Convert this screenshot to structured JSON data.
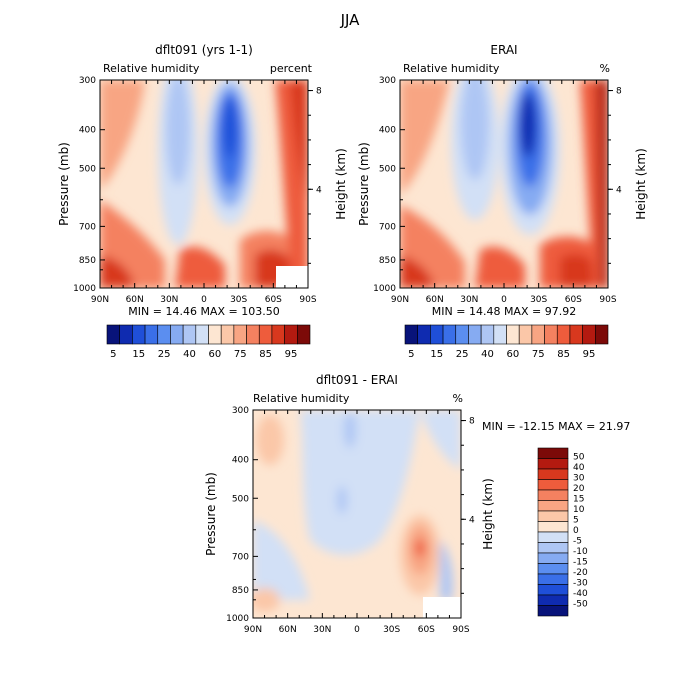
{
  "page_title": "JJA",
  "chart_data": [
    {
      "type": "heatmap",
      "title": "dflt091 (yrs 1-1)",
      "subtitle_left": "Relative humidity",
      "subtitle_right": "percent",
      "ylabel": "Pressure (mb)",
      "ylabel_right": "Height (km)",
      "x_ticks": [
        "90N",
        "60N",
        "30N",
        "0",
        "30S",
        "60S",
        "90S"
      ],
      "y_ticks": [
        "300",
        "400",
        "500",
        "700",
        "850",
        "1000"
      ],
      "y_ticks_right": [
        "8",
        "4"
      ],
      "stats": "MIN =  14.46   MAX = 103.50",
      "levels": [
        5,
        10,
        15,
        20,
        25,
        30,
        40,
        50,
        60,
        65,
        70,
        75,
        80,
        85,
        90,
        95
      ],
      "colorbar_labels": [
        "5",
        "15",
        "25",
        "40",
        "60",
        "75",
        "85",
        "95"
      ],
      "colorbar_orientation": "horizontal"
    },
    {
      "type": "heatmap",
      "title": "ERAI",
      "subtitle_left": "Relative humidity",
      "subtitle_right": "%",
      "ylabel": "Pressure (mb)",
      "ylabel_right": "Height (km)",
      "x_ticks": [
        "90N",
        "60N",
        "30N",
        "0",
        "30S",
        "60S",
        "90S"
      ],
      "y_ticks": [
        "300",
        "400",
        "500",
        "700",
        "850",
        "1000"
      ],
      "y_ticks_right": [
        "8",
        "4"
      ],
      "stats": "MIN =  14.48   MAX =  97.92",
      "levels": [
        5,
        10,
        15,
        20,
        25,
        30,
        40,
        50,
        60,
        65,
        70,
        75,
        80,
        85,
        90,
        95
      ],
      "colorbar_labels": [
        "5",
        "15",
        "25",
        "40",
        "60",
        "75",
        "85",
        "95"
      ],
      "colorbar_orientation": "horizontal"
    },
    {
      "type": "heatmap",
      "title": "dflt091 - ERAI",
      "subtitle_left": "Relative humidity",
      "subtitle_right": "%",
      "ylabel": "Pressure (mb)",
      "ylabel_right": "Height (km)",
      "x_ticks": [
        "90N",
        "60N",
        "30N",
        "0",
        "30S",
        "60S",
        "90S"
      ],
      "y_ticks": [
        "300",
        "400",
        "500",
        "700",
        "850",
        "1000"
      ],
      "y_ticks_right": [
        "8",
        "4"
      ],
      "stats": "MIN = -12.15   MAX =  21.97",
      "levels": [
        -50,
        -40,
        -30,
        -20,
        -15,
        -10,
        -5,
        0,
        5,
        10,
        15,
        20,
        30,
        40,
        50
      ],
      "colorbar_labels": [
        "50",
        "40",
        "30",
        "20",
        "15",
        "10",
        "5",
        "0",
        "-5",
        "-10",
        "-15",
        "-20",
        "-30",
        "-40",
        "-50"
      ],
      "colorbar_orientation": "vertical"
    }
  ],
  "colors": {
    "abs_scale": [
      "#08137a",
      "#0f2bb0",
      "#1f4fd8",
      "#3a6fe8",
      "#5b8ef0",
      "#86abf2",
      "#aec6f4",
      "#d2e0f6",
      "#fde6d2",
      "#fbc7a8",
      "#f8a583",
      "#f48160",
      "#ee5c3c",
      "#d8381e",
      "#b31a10",
      "#7c0a08"
    ],
    "diff_scale": [
      "#7c0a08",
      "#b31a10",
      "#d8381e",
      "#ee5c3c",
      "#f48160",
      "#f8a583",
      "#fbc7a8",
      "#fde6d2",
      "#d2e0f6",
      "#aec6f4",
      "#86abf2",
      "#5b8ef0",
      "#3a6fe8",
      "#1f4fd8",
      "#0f2bb0",
      "#08137a"
    ]
  }
}
